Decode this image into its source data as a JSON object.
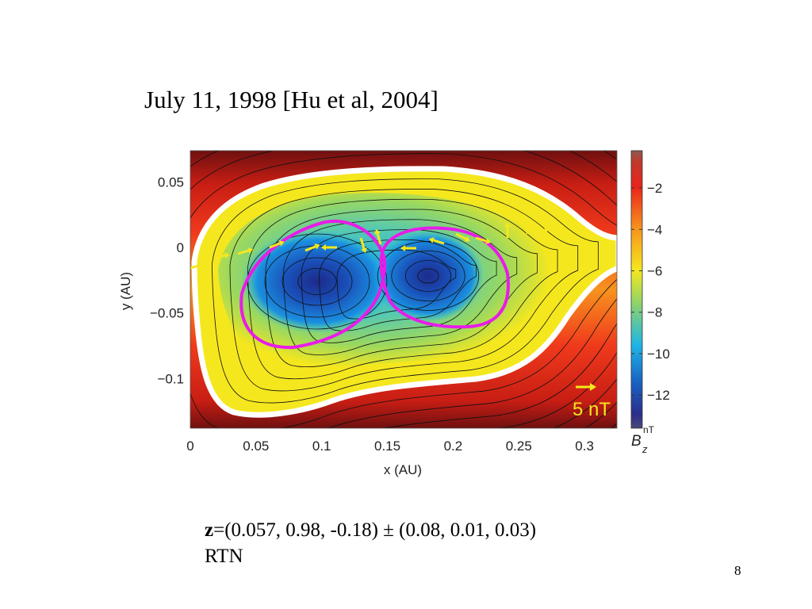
{
  "slide": {
    "title": "July 11, 1998 [Hu et al, 2004]",
    "caption_bold": "z",
    "caption_rest": "=(0.057, 0.98, -0.18) ± (0.08, 0.01, 0.03)",
    "caption_line2": "RTN",
    "page_number": "8"
  },
  "chart_data": {
    "type": "heatmap",
    "subtype": "filled contour map with contour lines and transverse field arrows",
    "xlabel": "x (AU)",
    "ylabel": "y (AU)",
    "xlim": [
      0,
      0.325
    ],
    "ylim": [
      -0.135,
      0.075
    ],
    "xticks": [
      "0",
      "0.05",
      "0.1",
      "0.15",
      "0.2",
      "0.25",
      "0.3"
    ],
    "yticks": [
      "0.05",
      "0",
      "−0.05",
      "−0.1"
    ],
    "colorbar": {
      "label": "B",
      "label_subscript": "z",
      "unit": "nT",
      "range": [
        -13.6,
        -0.2
      ],
      "ticks": [
        "−2",
        "−4",
        "−6",
        "−8",
        "−10",
        "−12"
      ],
      "colormap": "jet",
      "colors": [
        "#7f1f1f",
        "#e8241c",
        "#f7931e",
        "#f5e71e",
        "#8fd36a",
        "#1fb5e5",
        "#1a5fc0",
        "#2b2f8a",
        "#4a4a7a"
      ]
    },
    "minima": [
      {
        "x": 0.1,
        "y": -0.03,
        "value": -13
      },
      {
        "x": 0.18,
        "y": -0.02,
        "value": -13
      }
    ],
    "arrow_legend": "5 nT",
    "boundary_contour_color": "#ffffff",
    "separatrix_color": "#e81ce8",
    "arrow_color": "#f5e71e"
  }
}
